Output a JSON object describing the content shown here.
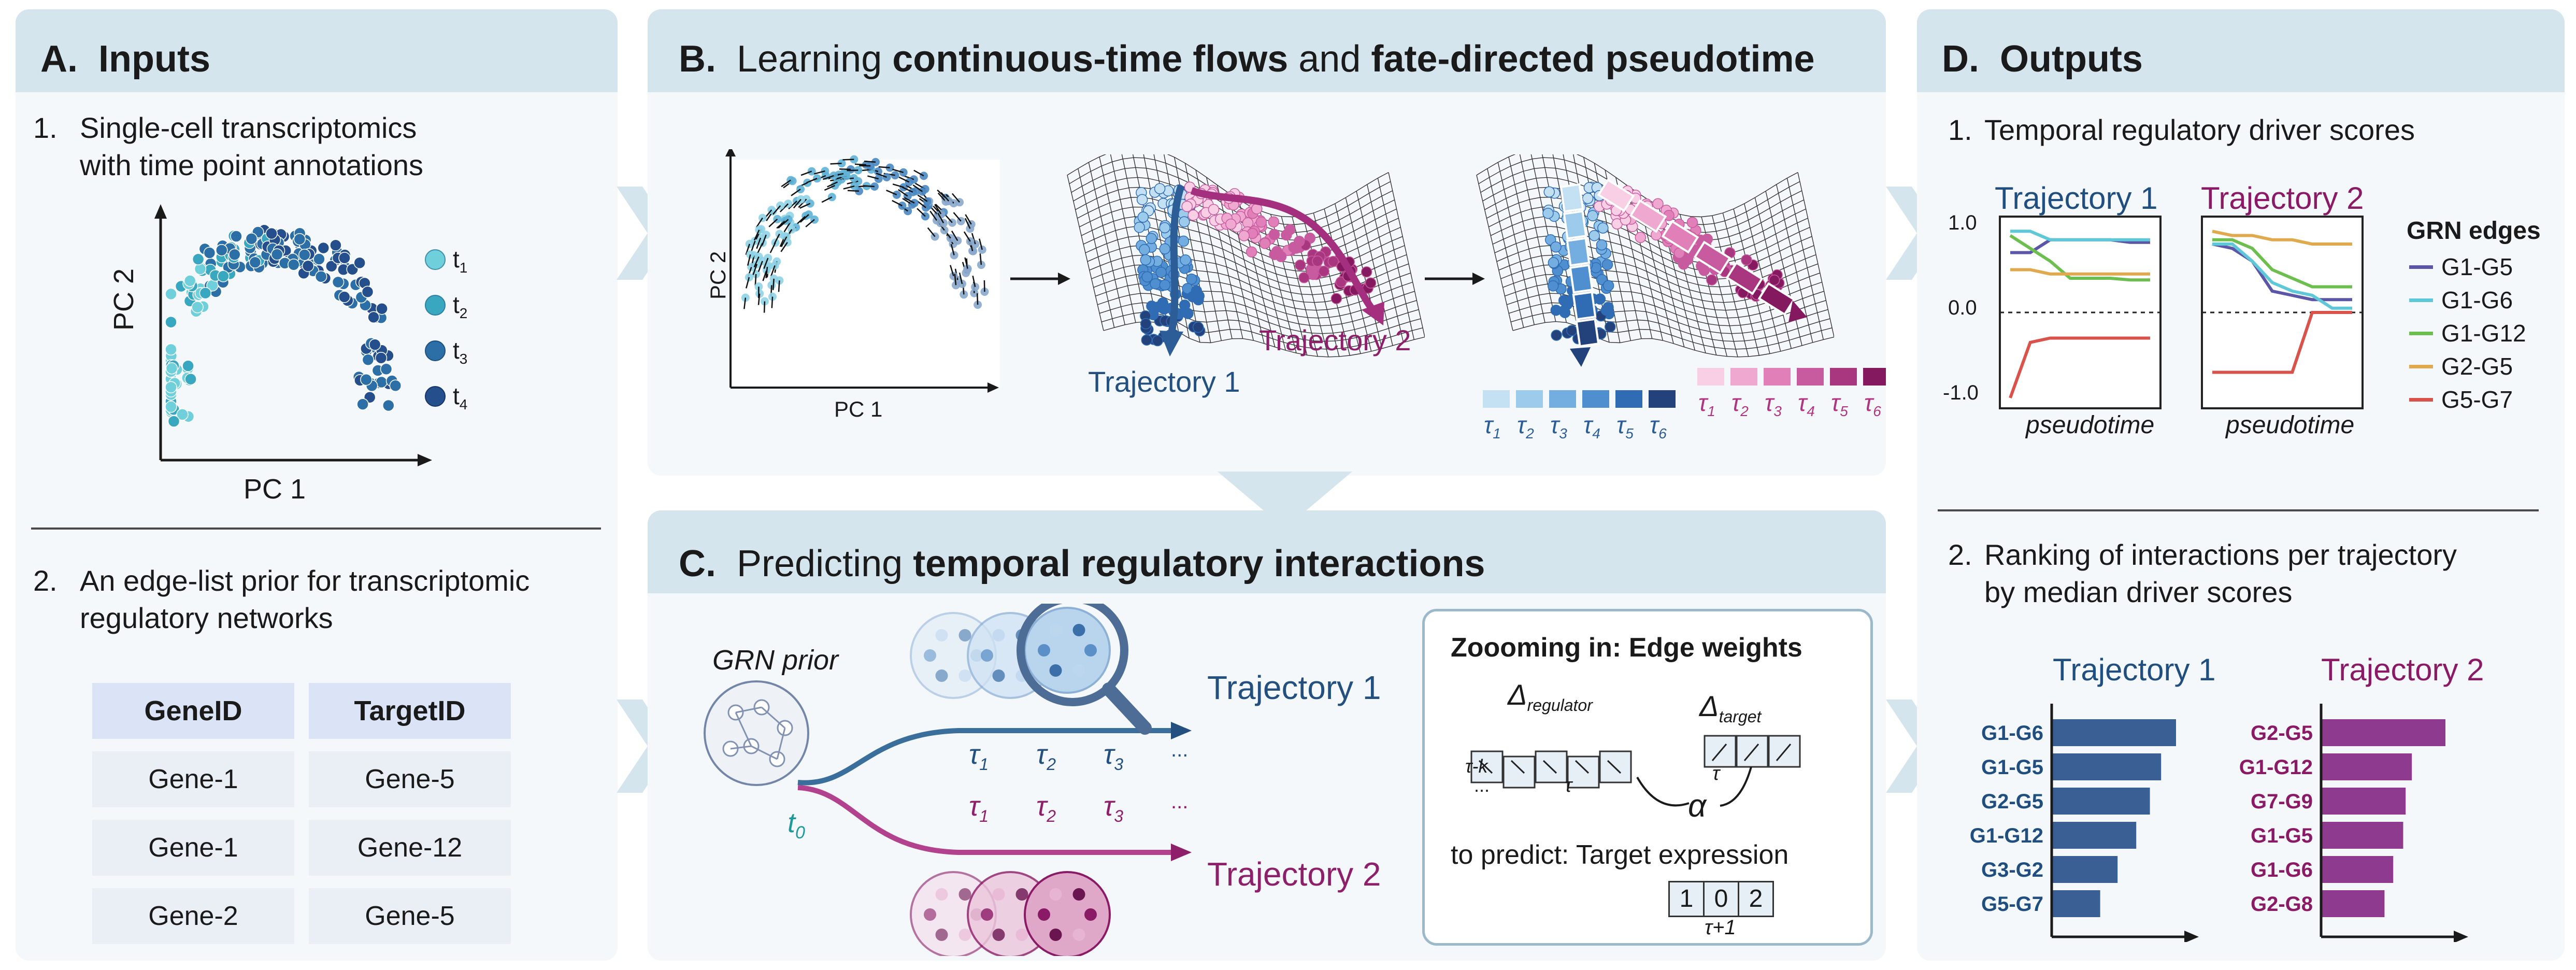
{
  "panel_a": {
    "title_letter": "A.",
    "title": "Inputs",
    "item1_num": "1.",
    "item1_line1": "Single-cell transcriptomics",
    "item1_line2": "with time point annotations",
    "xlabel": "PC 1",
    "ylabel": "PC 2",
    "legend": [
      "t",
      "t",
      "t",
      "t"
    ],
    "legend_sub": [
      "1",
      "2",
      "3",
      "4"
    ],
    "legend_colors": [
      "#6fd0dc",
      "#3aa7c0",
      "#2b6fa6",
      "#244f8c"
    ],
    "item2_num": "2.",
    "item2_line1": "An edge-list prior for transcriptomic",
    "item2_line2": "regulatory networks",
    "table_headers": [
      "GeneID",
      "TargetID"
    ],
    "table_rows": [
      [
        "Gene-1",
        "Gene-5"
      ],
      [
        "Gene-1",
        "Gene-12"
      ],
      [
        "Gene-2",
        "Gene-5"
      ]
    ]
  },
  "panel_b": {
    "title_letter": "B.",
    "title_pre": "Learning",
    "title_bold1": "continuous-time flows",
    "title_mid": "and",
    "title_bold2": "fate-directed pseudotime",
    "xlabel": "PC 1",
    "ylabel": "PC 2",
    "traj1": "Trajectory 1",
    "traj2": "Trajectory 2",
    "tau_glyph": "τ",
    "tau_subs": [
      "1",
      "2",
      "3",
      "4",
      "5",
      "6"
    ],
    "blue_shades": [
      "#c4e0f3",
      "#9ccbeb",
      "#74aee0",
      "#4f8fcf",
      "#2f6cb4",
      "#23427c"
    ],
    "pink_shades": [
      "#f8cfe4",
      "#efa8cf",
      "#e07fb8",
      "#c85b9f",
      "#a9377f",
      "#85195f"
    ]
  },
  "panel_c": {
    "title_letter": "C.",
    "title_pre": "Predicting",
    "title_bold": "temporal regulatory interactions",
    "grn_prior": "GRN prior",
    "t0": "t",
    "t0_sub": "0",
    "traj1": "Trajectory 1",
    "traj2": "Trajectory 2",
    "tau_glyph": "τ",
    "tau_subs": [
      "1",
      "2",
      "3"
    ],
    "ellipsis": "...",
    "zoom_title": "Zoooming in: Edge weights",
    "delta_regulator": "Δ",
    "delta_regulator_sub": "regulator",
    "delta_target": "Δ",
    "delta_target_sub": "target",
    "tau_k": "τ-k",
    "tau": "τ",
    "dots": "...",
    "alpha": "α",
    "predict": "to predict: Target expression",
    "expr_values": [
      "1",
      "0",
      "2"
    ],
    "tau_plus": "τ+1"
  },
  "panel_d": {
    "title_letter": "D.",
    "title": "Outputs",
    "item1_num": "1.",
    "item1": "Temporal regulatory driver scores",
    "traj1": "Trajectory 1",
    "traj2": "Trajectory 2",
    "traj1_color": "#1f4e7f",
    "traj2_color": "#8b1a66",
    "y_ticks": [
      "1.0",
      "0.0",
      "-1.0"
    ],
    "xlabel": "pseudotime",
    "legend_title": "GRN edges",
    "legend": [
      "G1-G5",
      "G1-G6",
      "G1-G12",
      "G2-G5",
      "G5-G7"
    ],
    "legend_colors": [
      "#5b56a8",
      "#5ec8d8",
      "#6cbf4e",
      "#e0a94e",
      "#d9534a"
    ],
    "item2_num": "2.",
    "item2_line1": "Ranking of interactions per trajectory",
    "item2_line2": "by median driver scores",
    "rank1": {
      "title": "Trajectory 1",
      "labels": [
        "G1-G6",
        "G1-G5",
        "G2-G5",
        "G1-G12",
        "G3-G2",
        "G5-G7"
      ],
      "values": [
        1.0,
        0.88,
        0.79,
        0.68,
        0.53,
        0.39
      ]
    },
    "rank2": {
      "title": "Trajectory 2",
      "labels": [
        "G2-G5",
        "G1-G12",
        "G7-G9",
        "G1-G5",
        "G1-G6",
        "G2-G8"
      ],
      "values": [
        1.0,
        0.73,
        0.68,
        0.66,
        0.58,
        0.51
      ]
    }
  }
}
